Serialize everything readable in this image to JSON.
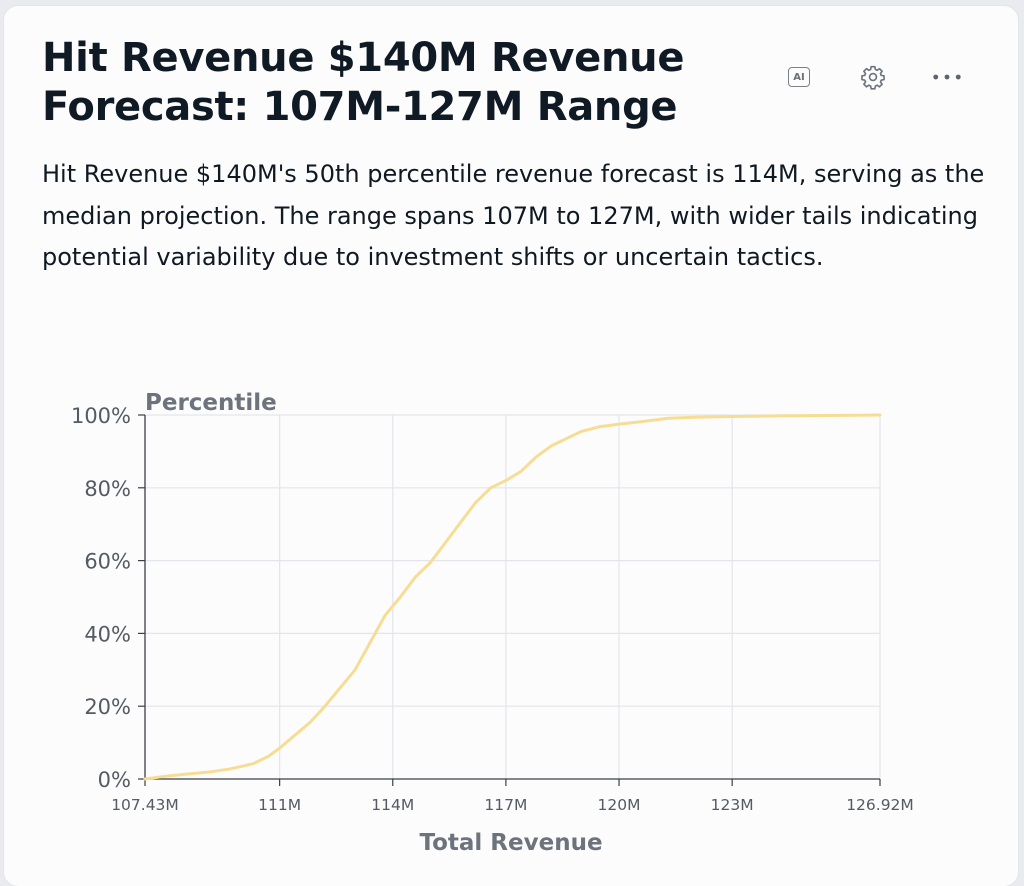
{
  "card": {
    "title": "Hit Revenue $140M Revenue Forecast: 107M-127M Range",
    "description": "Hit Revenue $140M's 50th percentile revenue forecast is 114M, serving as the median projection. The range spans 107M to 127M, with wider tails indicating potential variability due to investment shifts or uncertain tactics.",
    "actions": {
      "ai_label": "AI",
      "settings_icon": "gear-icon",
      "more_icon": "ellipsis-icon"
    }
  },
  "colors": {
    "line": "#f7dd94",
    "grid": "#e3e5ea",
    "axis": "#3b3f45"
  },
  "chart_data": {
    "type": "line",
    "title": "",
    "xlabel": "Total Revenue",
    "ylabel": "Percentile",
    "xlim": [
      107.43,
      126.92
    ],
    "ylim": [
      0,
      100
    ],
    "x_ticks": [
      107.43,
      111,
      114,
      117,
      120,
      123,
      126.92
    ],
    "x_tick_labels": [
      "107.43M",
      "111M",
      "114M",
      "117M",
      "120M",
      "123M",
      "126.92M"
    ],
    "y_ticks": [
      0,
      20,
      40,
      60,
      80,
      100
    ],
    "y_tick_labels": [
      "0%",
      "20%",
      "40%",
      "60%",
      "80%",
      "100%"
    ],
    "grid": true,
    "series": [
      {
        "name": "Percentile",
        "x": [
          107.43,
          108.0,
          108.6,
          109.2,
          109.7,
          110.3,
          110.7,
          111.0,
          111.4,
          111.8,
          112.2,
          112.6,
          113.0,
          113.4,
          113.8,
          114.2,
          114.6,
          115.0,
          115.4,
          115.8,
          116.2,
          116.6,
          117.0,
          117.4,
          117.8,
          118.2,
          118.6,
          119.0,
          119.5,
          120.0,
          120.6,
          121.3,
          122.0,
          123.0,
          124.5,
          126.0,
          126.92
        ],
        "values": [
          0,
          0.8,
          1.4,
          2.0,
          2.8,
          4.2,
          6.2,
          8.5,
          12,
          15.5,
          20,
          25,
          30,
          37.5,
          45,
          50,
          55.5,
          59.5,
          65,
          70.5,
          76,
          80,
          82,
          84.5,
          88.5,
          91.5,
          93.5,
          95.5,
          96.8,
          97.5,
          98.2,
          99.1,
          99.4,
          99.6,
          99.8,
          99.9,
          100
        ]
      }
    ]
  }
}
